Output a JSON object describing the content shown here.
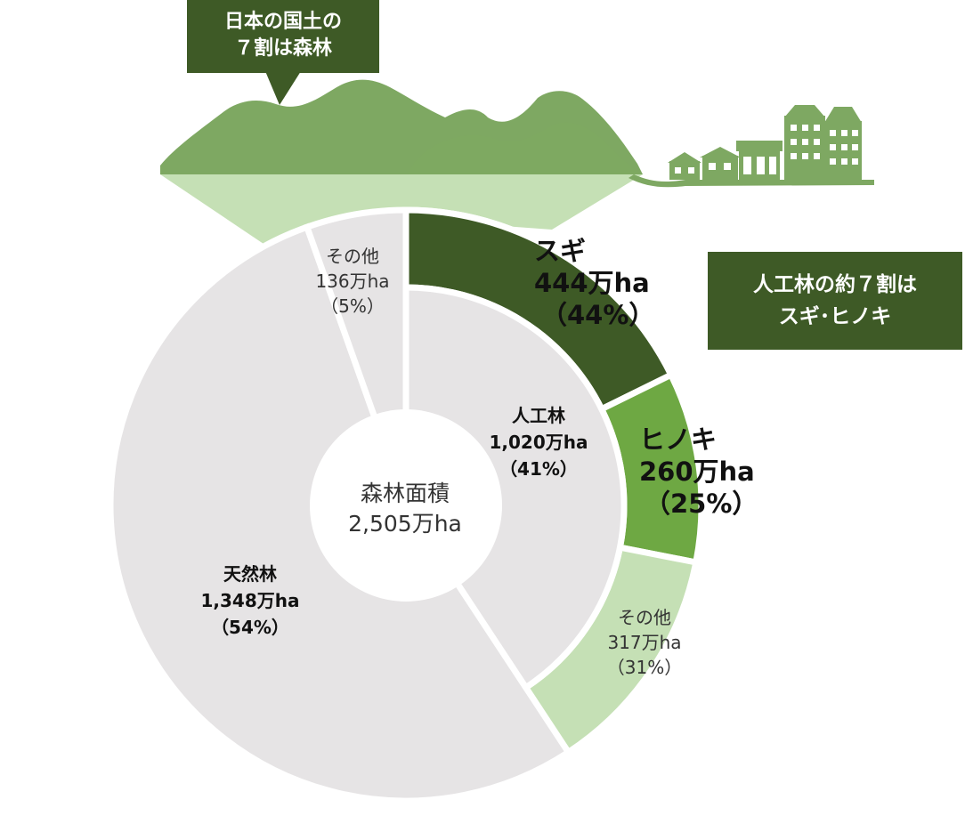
{
  "callout_top": {
    "line1": "日本の国土の",
    "line2": "７割は森林"
  },
  "callout_right": {
    "line1": "人工林の約７割は",
    "line2": "スギ･ヒノキ"
  },
  "center_label": {
    "line1": "森林面積",
    "line2": "2,505万ha"
  },
  "colors": {
    "sugi": "#3e5a26",
    "hinoki": "#6ea843",
    "other_planted": "#c5e0b5",
    "inner": "#e6e4e5",
    "mountain": "#7ea862",
    "mountain_light": "#c5e0b5",
    "building": "#7ea862",
    "callout": "#3e5a26"
  },
  "chart_data": [
    {
      "type": "pie",
      "ring": "inner",
      "total": {
        "label": "森林面積",
        "value": 2505,
        "unit": "万ha"
      },
      "slices": [
        {
          "name": "人工林",
          "value": 1020,
          "value_label": "1,020万ha",
          "pct_label": "（41%）"
        },
        {
          "name": "天然林",
          "value": 1348,
          "value_label": "1,348万ha",
          "pct_label": "（54%）"
        },
        {
          "name": "その他",
          "value": 136,
          "value_label": "136万ha",
          "pct_label": "（5%）"
        }
      ]
    },
    {
      "type": "pie",
      "ring": "outer",
      "parent": "人工林",
      "slices": [
        {
          "name": "スギ",
          "value": 444,
          "value_label": "444万ha",
          "pct_label": "（44%）"
        },
        {
          "name": "ヒノキ",
          "value": 260,
          "value_label": "260万ha",
          "pct_label": "（25%）"
        },
        {
          "name": "その他",
          "value": 317,
          "value_label": "317万ha",
          "pct_label": "（31%）"
        }
      ]
    }
  ]
}
